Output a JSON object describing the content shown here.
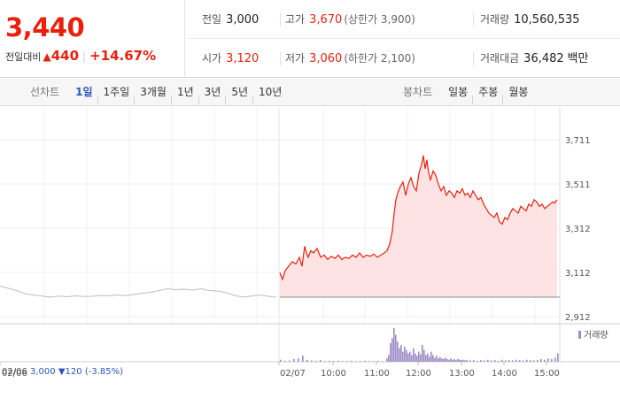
{
  "price": {
    "current": "3,440",
    "change_label": "전일대비",
    "change_arrow": "▲",
    "change_value": "440",
    "change_pct": "+14.67%"
  },
  "info": {
    "prev_close_label": "전일",
    "prev_close": "3,000",
    "high_label": "고가",
    "high": "3,670",
    "upper_limit": "(상한가 3,900)",
    "volume_label": "거래량",
    "volume": "10,560,535",
    "open_label": "시가",
    "open": "3,120",
    "low_label": "저가",
    "low": "3,060",
    "lower_limit": "(하한가 2,100)",
    "amount_label": "거래대금",
    "amount": "36,482",
    "amount_unit": "백만"
  },
  "line_tabs": {
    "title": "선차트",
    "items": [
      "1일",
      "1주일",
      "3개월",
      "1년",
      "3년",
      "5년",
      "10년"
    ],
    "active": "1일"
  },
  "candle_tabs": {
    "title": "봉차트",
    "items": [
      "일봉",
      "주봉",
      "월봉"
    ]
  },
  "prev_day": {
    "date": "02/06",
    "close": "3,000",
    "arrow": "▼",
    "change": "120",
    "pct": "(-3.85%)"
  },
  "colors": {
    "up": "#e8210e",
    "down": "#2b55b8",
    "fill": "#fde3e3",
    "prev_line": "#bdbdbd",
    "volume": "#9c8cc4"
  },
  "chart_data": {
    "type": "line",
    "y_ticks": [
      "3,711",
      "3,511",
      "3,312",
      "3,112",
      "2,912"
    ],
    "y_tick_values": [
      3711,
      3511,
      3312,
      3112,
      2912
    ],
    "ylim": [
      2912,
      3711
    ],
    "x_ticks": [
      "02/06",
      "02/07",
      "10:00",
      "11:00",
      "12:00",
      "13:00",
      "14:00",
      "15:00"
    ],
    "legend": "거래량",
    "prev_close": 3000,
    "prev_day_series": [
      3050,
      3040,
      3030,
      3015,
      3010,
      3005,
      3000,
      3005,
      3002,
      3006,
      3003,
      3004,
      3008,
      3006,
      3010,
      3007,
      3012,
      3018,
      3022,
      3030,
      3038,
      3034,
      3036,
      3032,
      3038,
      3030,
      3028,
      3020,
      3008,
      3000,
      3005,
      3010,
      3004,
      3000
    ],
    "today_series": [
      [
        0,
        3110
      ],
      [
        3,
        3080
      ],
      [
        6,
        3120
      ],
      [
        10,
        3140
      ],
      [
        14,
        3160
      ],
      [
        18,
        3150
      ],
      [
        22,
        3180
      ],
      [
        25,
        3140
      ],
      [
        28,
        3230
      ],
      [
        30,
        3200
      ],
      [
        32,
        3180
      ],
      [
        35,
        3210
      ],
      [
        38,
        3200
      ],
      [
        42,
        3220
      ],
      [
        46,
        3180
      ],
      [
        50,
        3190
      ],
      [
        54,
        3170
      ],
      [
        58,
        3185
      ],
      [
        62,
        3175
      ],
      [
        66,
        3190
      ],
      [
        70,
        3170
      ],
      [
        74,
        3180
      ],
      [
        78,
        3175
      ],
      [
        82,
        3190
      ],
      [
        86,
        3180
      ],
      [
        90,
        3200
      ],
      [
        94,
        3180
      ],
      [
        98,
        3190
      ],
      [
        102,
        3185
      ],
      [
        106,
        3195
      ],
      [
        110,
        3180
      ],
      [
        114,
        3190
      ],
      [
        118,
        3200
      ],
      [
        121,
        3210
      ],
      [
        124,
        3240
      ],
      [
        127,
        3300
      ],
      [
        129,
        3380
      ],
      [
        131,
        3440
      ],
      [
        133,
        3470
      ],
      [
        136,
        3500
      ],
      [
        139,
        3520
      ],
      [
        142,
        3460
      ],
      [
        145,
        3510
      ],
      [
        148,
        3540
      ],
      [
        151,
        3500
      ],
      [
        154,
        3480
      ],
      [
        157,
        3560
      ],
      [
        160,
        3600
      ],
      [
        162,
        3640
      ],
      [
        164,
        3580
      ],
      [
        166,
        3620
      ],
      [
        168,
        3560
      ],
      [
        170,
        3530
      ],
      [
        173,
        3570
      ],
      [
        176,
        3550
      ],
      [
        179,
        3510
      ],
      [
        182,
        3480
      ],
      [
        185,
        3500
      ],
      [
        188,
        3460
      ],
      [
        191,
        3480
      ],
      [
        194,
        3470
      ],
      [
        197,
        3450
      ],
      [
        200,
        3480
      ],
      [
        203,
        3470
      ],
      [
        206,
        3490
      ],
      [
        209,
        3460
      ],
      [
        212,
        3470
      ],
      [
        215,
        3450
      ],
      [
        218,
        3480
      ],
      [
        221,
        3460
      ],
      [
        224,
        3440
      ],
      [
        227,
        3450
      ],
      [
        230,
        3420
      ],
      [
        233,
        3400
      ],
      [
        236,
        3380
      ],
      [
        239,
        3370
      ],
      [
        242,
        3360
      ],
      [
        245,
        3380
      ],
      [
        248,
        3340
      ],
      [
        251,
        3330
      ],
      [
        254,
        3360
      ],
      [
        257,
        3350
      ],
      [
        260,
        3380
      ],
      [
        263,
        3400
      ],
      [
        266,
        3390
      ],
      [
        269,
        3380
      ],
      [
        272,
        3410
      ],
      [
        275,
        3400
      ],
      [
        278,
        3390
      ],
      [
        281,
        3420
      ],
      [
        284,
        3410
      ],
      [
        287,
        3440
      ],
      [
        290,
        3430
      ],
      [
        293,
        3410
      ],
      [
        296,
        3420
      ],
      [
        299,
        3400
      ],
      [
        302,
        3410
      ],
      [
        305,
        3420
      ],
      [
        308,
        3430
      ],
      [
        310,
        3425
      ],
      [
        313,
        3440
      ]
    ],
    "volume": [
      [
        0,
        6
      ],
      [
        5,
        3
      ],
      [
        10,
        4
      ],
      [
        15,
        8
      ],
      [
        20,
        10
      ],
      [
        25,
        18
      ],
      [
        30,
        6
      ],
      [
        35,
        4
      ],
      [
        40,
        3
      ],
      [
        45,
        5
      ],
      [
        50,
        2
      ],
      [
        55,
        3
      ],
      [
        60,
        2
      ],
      [
        65,
        3
      ],
      [
        70,
        2
      ],
      [
        75,
        2
      ],
      [
        80,
        3
      ],
      [
        85,
        2
      ],
      [
        90,
        2
      ],
      [
        95,
        3
      ],
      [
        100,
        2
      ],
      [
        105,
        2
      ],
      [
        110,
        3
      ],
      [
        115,
        2
      ],
      [
        120,
        10
      ],
      [
        122,
        20
      ],
      [
        124,
        55
      ],
      [
        126,
        70
      ],
      [
        128,
        100
      ],
      [
        130,
        80
      ],
      [
        132,
        60
      ],
      [
        134,
        40
      ],
      [
        136,
        50
      ],
      [
        138,
        30
      ],
      [
        140,
        45
      ],
      [
        142,
        35
      ],
      [
        144,
        25
      ],
      [
        146,
        30
      ],
      [
        148,
        20
      ],
      [
        150,
        40
      ],
      [
        152,
        25
      ],
      [
        154,
        18
      ],
      [
        156,
        30
      ],
      [
        158,
        22
      ],
      [
        160,
        50
      ],
      [
        162,
        35
      ],
      [
        164,
        20
      ],
      [
        166,
        25
      ],
      [
        168,
        15
      ],
      [
        170,
        30
      ],
      [
        172,
        20
      ],
      [
        174,
        12
      ],
      [
        176,
        18
      ],
      [
        178,
        10
      ],
      [
        180,
        14
      ],
      [
        182,
        10
      ],
      [
        184,
        8
      ],
      [
        186,
        12
      ],
      [
        188,
        8
      ],
      [
        190,
        6
      ],
      [
        192,
        10
      ],
      [
        194,
        6
      ],
      [
        196,
        8
      ],
      [
        198,
        5
      ],
      [
        200,
        8
      ],
      [
        202,
        6
      ],
      [
        204,
        5
      ],
      [
        206,
        6
      ],
      [
        208,
        4
      ],
      [
        210,
        6
      ],
      [
        214,
        4
      ],
      [
        218,
        5
      ],
      [
        222,
        3
      ],
      [
        226,
        5
      ],
      [
        230,
        4
      ],
      [
        234,
        6
      ],
      [
        238,
        4
      ],
      [
        242,
        5
      ],
      [
        246,
        3
      ],
      [
        250,
        6
      ],
      [
        254,
        4
      ],
      [
        258,
        5
      ],
      [
        262,
        4
      ],
      [
        266,
        6
      ],
      [
        270,
        5
      ],
      [
        274,
        4
      ],
      [
        278,
        6
      ],
      [
        282,
        5
      ],
      [
        286,
        4
      ],
      [
        290,
        5
      ],
      [
        294,
        8
      ],
      [
        298,
        6
      ],
      [
        302,
        10
      ],
      [
        306,
        8
      ],
      [
        310,
        12
      ],
      [
        313,
        25
      ]
    ]
  }
}
